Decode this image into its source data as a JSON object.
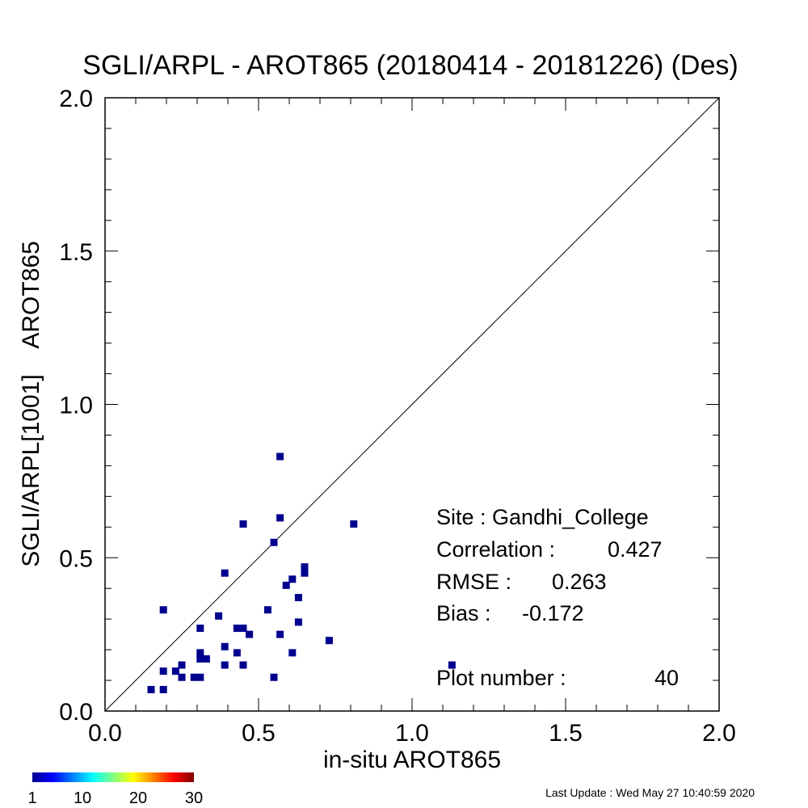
{
  "chart_data": {
    "type": "scatter",
    "title": "SGLI/ARPL - AROT865 (20180414 - 20181226) (Des)",
    "xlabel": "in-situ AROT865",
    "ylabel": "SGLI/ARPL[1001]    AROT865",
    "xlim": [
      0.0,
      2.0
    ],
    "ylim": [
      0.0,
      2.0
    ],
    "x_ticks": [
      "0.0",
      "0.5",
      "1.0",
      "1.5",
      "2.0"
    ],
    "y_ticks": [
      "0.0",
      "0.5",
      "1.0",
      "1.5",
      "2.0"
    ],
    "reference_line": "1:1",
    "marker_color": "#00008f",
    "points": [
      {
        "x": 0.15,
        "y": 0.07
      },
      {
        "x": 0.19,
        "y": 0.07
      },
      {
        "x": 0.19,
        "y": 0.13
      },
      {
        "x": 0.19,
        "y": 0.33
      },
      {
        "x": 0.23,
        "y": 0.13
      },
      {
        "x": 0.25,
        "y": 0.11
      },
      {
        "x": 0.25,
        "y": 0.15
      },
      {
        "x": 0.29,
        "y": 0.11
      },
      {
        "x": 0.31,
        "y": 0.11
      },
      {
        "x": 0.31,
        "y": 0.17
      },
      {
        "x": 0.31,
        "y": 0.19
      },
      {
        "x": 0.31,
        "y": 0.27
      },
      {
        "x": 0.33,
        "y": 0.17
      },
      {
        "x": 0.37,
        "y": 0.31
      },
      {
        "x": 0.39,
        "y": 0.15
      },
      {
        "x": 0.39,
        "y": 0.21
      },
      {
        "x": 0.39,
        "y": 0.45
      },
      {
        "x": 0.43,
        "y": 0.19
      },
      {
        "x": 0.43,
        "y": 0.27
      },
      {
        "x": 0.45,
        "y": 0.15
      },
      {
        "x": 0.45,
        "y": 0.27
      },
      {
        "x": 0.45,
        "y": 0.61
      },
      {
        "x": 0.47,
        "y": 0.25
      },
      {
        "x": 0.53,
        "y": 0.33
      },
      {
        "x": 0.55,
        "y": 0.11
      },
      {
        "x": 0.55,
        "y": 0.55
      },
      {
        "x": 0.57,
        "y": 0.25
      },
      {
        "x": 0.57,
        "y": 0.63
      },
      {
        "x": 0.57,
        "y": 0.83
      },
      {
        "x": 0.59,
        "y": 0.41
      },
      {
        "x": 0.61,
        "y": 0.19
      },
      {
        "x": 0.61,
        "y": 0.43
      },
      {
        "x": 0.63,
        "y": 0.29
      },
      {
        "x": 0.63,
        "y": 0.37
      },
      {
        "x": 0.65,
        "y": 0.45
      },
      {
        "x": 0.65,
        "y": 0.47
      },
      {
        "x": 0.73,
        "y": 0.23
      },
      {
        "x": 0.81,
        "y": 0.61
      },
      {
        "x": 1.13,
        "y": 0.15
      },
      {
        "x": 0.43,
        "y": 0.27
      }
    ],
    "stats": {
      "site": "Site : Gandhi_College",
      "correlation_label": "Correlation :",
      "correlation": "0.427",
      "rmse_label": "RMSE :",
      "rmse": "0.263",
      "bias_label": "Bias :",
      "bias": "-0.172",
      "plot_number_label": "Plot number :",
      "plot_number": "40"
    },
    "colorbar": {
      "ticks": [
        "1",
        "10",
        "20",
        "30"
      ],
      "tick_values": [
        1,
        10,
        20,
        30
      ],
      "range": [
        1,
        30
      ],
      "colors": [
        "#00008f",
        "#0000ff",
        "#0080ff",
        "#00ffff",
        "#80ff80",
        "#ffff00",
        "#ff8000",
        "#ff0000",
        "#800000"
      ]
    }
  },
  "footer": {
    "last_update": "Last Update : Wed May 27 10:40:59 2020"
  }
}
